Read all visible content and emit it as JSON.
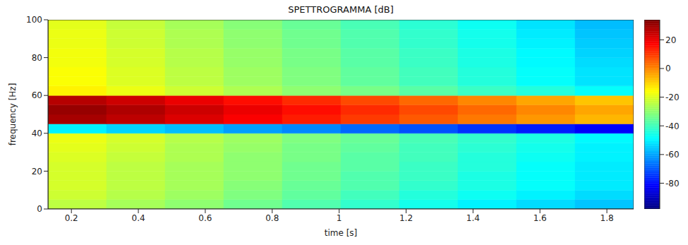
{
  "chart_data": {
    "type": "heatmap",
    "title": "SPETTROGRAMMA [dB]",
    "x_label": "time [s]",
    "y_label": "frequency [Hz]",
    "xlim": [
      0.13,
      1.88
    ],
    "xticks": [
      0.2,
      0.4,
      0.6,
      0.8,
      1,
      1.2,
      1.4,
      1.6,
      1.8
    ],
    "ylim": [
      0,
      100
    ],
    "yticks": [
      0,
      20,
      40,
      60,
      80,
      100
    ],
    "grid": false,
    "time_edges": [
      0.13,
      0.305,
      0.48,
      0.655,
      0.83,
      1.005,
      1.18,
      1.355,
      1.53,
      1.705,
      1.88
    ],
    "frequency_edges": [
      0,
      5,
      10,
      15,
      20,
      25,
      30,
      35,
      40,
      45,
      50,
      55,
      60,
      65,
      70,
      75,
      80,
      85,
      90,
      95,
      100
    ],
    "cells": [
      [
        -24,
        -27,
        -30,
        -34,
        -38,
        -42,
        -46,
        -50,
        -53,
        -56
      ],
      [
        -22,
        -25,
        -28,
        -32,
        -36,
        -40,
        -44,
        -47,
        -50,
        -53
      ],
      [
        -21,
        -24,
        -27,
        -31,
        -35,
        -38,
        -42,
        -45,
        -48,
        -51
      ],
      [
        -21,
        -24,
        -27,
        -30,
        -34,
        -38,
        -41,
        -45,
        -48,
        -51
      ],
      [
        -21,
        -24,
        -27,
        -30,
        -34,
        -37,
        -41,
        -44,
        -48,
        -51
      ],
      [
        -20,
        -23,
        -26,
        -30,
        -33,
        -37,
        -40,
        -44,
        -47,
        -50
      ],
      [
        -19,
        -22,
        -26,
        -29,
        -33,
        -36,
        -40,
        -43,
        -46,
        -50
      ],
      [
        -18,
        -21,
        -25,
        -28,
        -32,
        -35,
        -39,
        -42,
        -45,
        -49
      ],
      [
        -50,
        -54,
        -57,
        -61,
        -64,
        -68,
        -71,
        -75,
        -78,
        -82
      ],
      [
        29,
        26,
        22,
        18,
        14,
        10,
        6,
        2,
        -2,
        -6
      ],
      [
        31,
        28,
        24,
        20,
        16,
        12,
        8,
        4,
        0,
        -4
      ],
      [
        27,
        24,
        20,
        16,
        12,
        8,
        4,
        0,
        -4,
        -8
      ],
      [
        -14,
        -18,
        -22,
        -26,
        -30,
        -33,
        -37,
        -41,
        -44,
        -48
      ],
      [
        -16,
        -20,
        -24,
        -28,
        -32,
        -36,
        -40,
        -44,
        -48,
        -52
      ],
      [
        -16,
        -20,
        -24,
        -28,
        -32,
        -36,
        -40,
        -44,
        -48,
        -52
      ],
      [
        -17,
        -21,
        -25,
        -29,
        -33,
        -37,
        -41,
        -45,
        -49,
        -53
      ],
      [
        -17,
        -21,
        -25,
        -29,
        -33,
        -37,
        -41,
        -45,
        -49,
        -54
      ],
      [
        -18,
        -22,
        -26,
        -30,
        -34,
        -38,
        -42,
        -46,
        -50,
        -55
      ],
      [
        -18,
        -22,
        -26,
        -30,
        -34,
        -38,
        -42,
        -46,
        -51,
        -56
      ],
      [
        -19,
        -23,
        -27,
        -31,
        -35,
        -39,
        -43,
        -47,
        -52,
        -57
      ]
    ],
    "colorbar": {
      "range": [
        -98,
        34
      ],
      "ticks": [
        -80,
        -60,
        -40,
        -20,
        0,
        20
      ]
    }
  }
}
